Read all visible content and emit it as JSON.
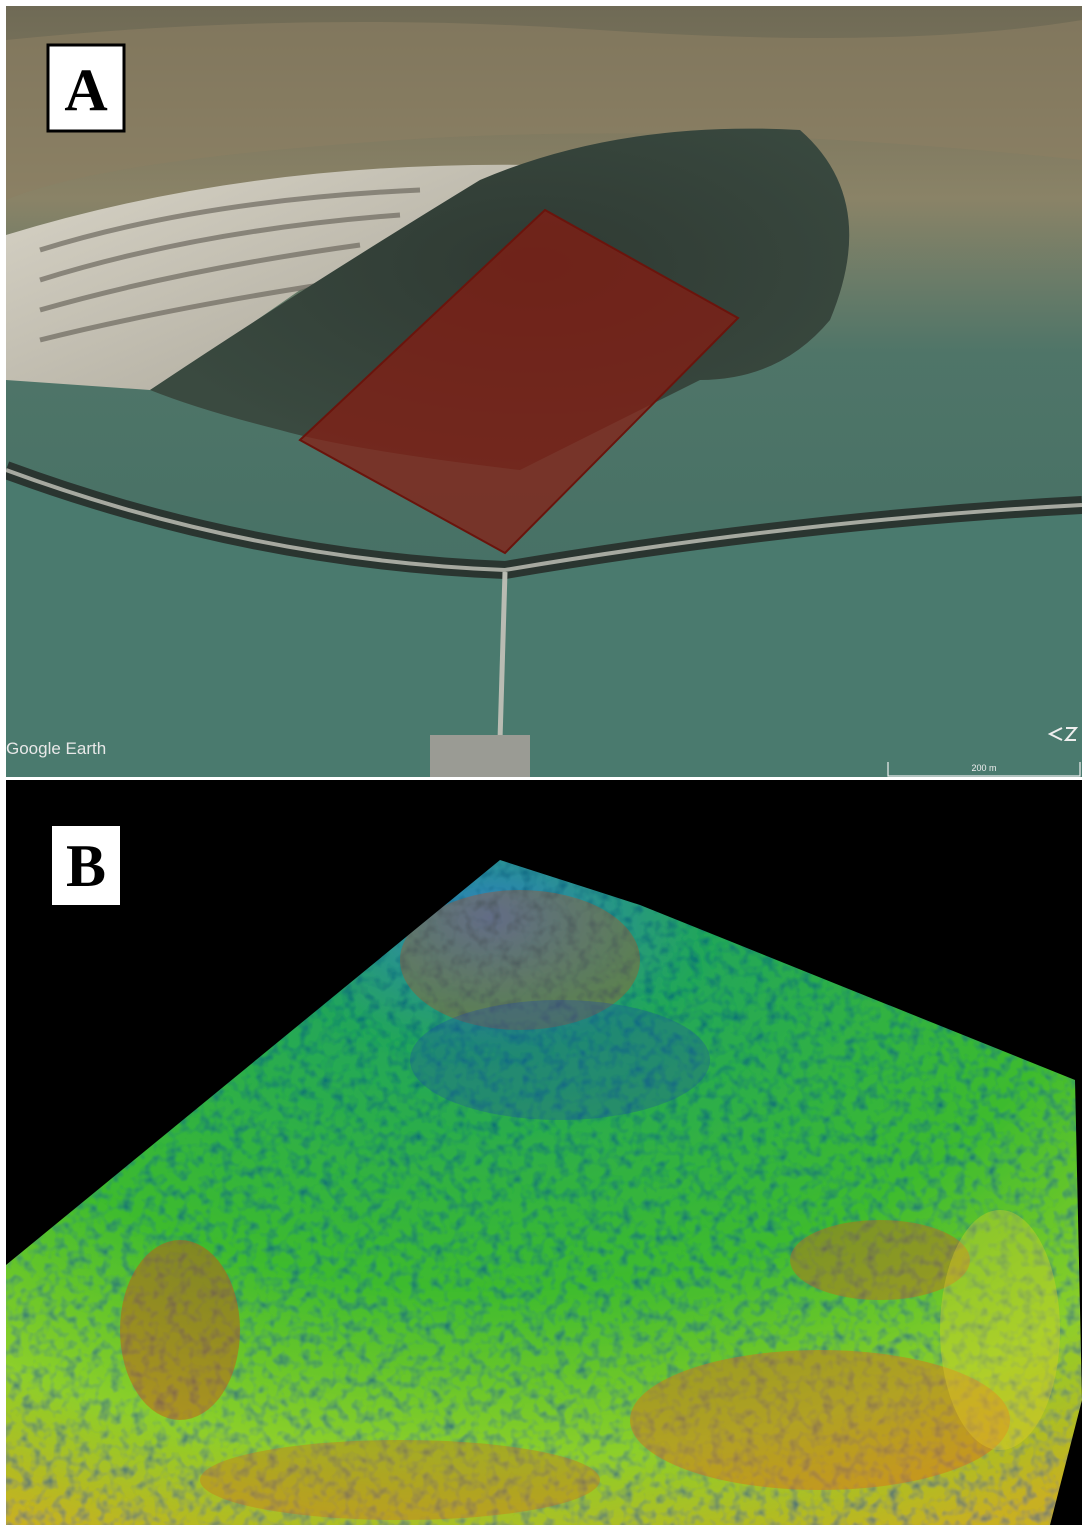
{
  "panels": [
    {
      "label": "A",
      "watermark": "Google Earth",
      "scale": "200 m"
    },
    {
      "label": "B"
    }
  ]
}
